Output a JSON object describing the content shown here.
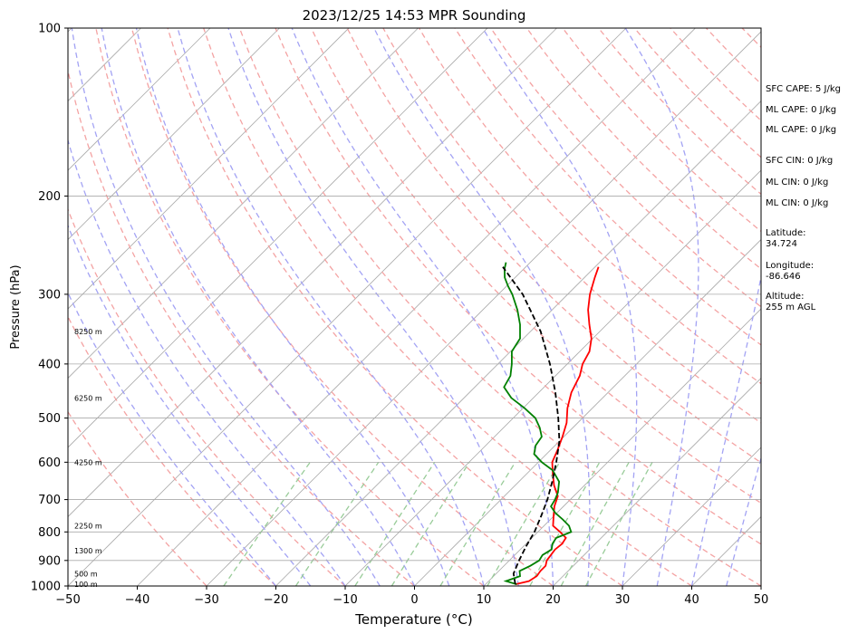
{
  "chart_data": {
    "type": "line",
    "title": "2023/12/25 14:53 MPR Sounding",
    "xlabel": "Temperature (°C)",
    "ylabel": "Pressure (hPa)",
    "xlim": [
      -50,
      50
    ],
    "ylim": [
      1000,
      100
    ],
    "y_scale": "log",
    "grid": true,
    "x_ticks": [
      -50,
      -40,
      -30,
      -20,
      -10,
      0,
      10,
      20,
      30,
      40,
      50
    ],
    "y_ticks": [
      100,
      200,
      300,
      400,
      500,
      600,
      700,
      800,
      900,
      1000
    ],
    "height_labels": [
      "8250 m",
      "6250 m",
      "4250 m",
      "2250 m",
      "1300 m",
      "500 m",
      "100 m"
    ],
    "height_label_pressures": [
      350,
      460,
      600,
      780,
      865,
      950,
      993
    ],
    "series": [
      {
        "color": "#ff0000",
        "pressure": [
          993,
          980,
          960,
          940,
          920,
          900,
          880,
          860,
          840,
          820,
          800,
          780,
          750,
          720,
          690,
          660,
          630,
          600,
          570,
          540,
          510,
          480,
          450,
          420,
          400,
          380,
          360,
          340,
          320,
          300,
          280,
          268
        ],
        "temperature": [
          14.3,
          15.8,
          16.2,
          16.0,
          16.0,
          15.4,
          15.2,
          15.0,
          15.2,
          14.9,
          13.2,
          11.3,
          10.0,
          8.7,
          7.7,
          5.6,
          3.8,
          2.0,
          1.0,
          -0.2,
          -1.6,
          -3.6,
          -5.3,
          -6.5,
          -7.8,
          -8.6,
          -10.2,
          -12.5,
          -14.8,
          -16.8,
          -18.5,
          -19.5
        ]
      },
      {
        "color": "#008000",
        "pressure": [
          993,
          980,
          960,
          940,
          920,
          900,
          880,
          860,
          840,
          820,
          800,
          780,
          760,
          740,
          720,
          700,
          680,
          650,
          620,
          600,
          580,
          560,
          540,
          520,
          500,
          480,
          460,
          440,
          420,
          400,
          380,
          360,
          340,
          320,
          300,
          290,
          280,
          270,
          263
        ],
        "temperature": [
          14.5,
          12.5,
          13.8,
          13.0,
          13.8,
          14.3,
          14.0,
          14.5,
          13.8,
          13.5,
          14.8,
          13.6,
          11.8,
          9.8,
          8.2,
          7.8,
          7.2,
          5.8,
          3.2,
          0.5,
          -1.8,
          -2.8,
          -3.2,
          -4.8,
          -6.8,
          -9.8,
          -13.2,
          -15.8,
          -16.5,
          -18.0,
          -19.8,
          -20.5,
          -22.5,
          -25.0,
          -28.0,
          -29.8,
          -31.5,
          -32.8,
          -33.5
        ]
      },
      {
        "color": "#000000",
        "dashed": true,
        "pressure": [
          993,
          950,
          900,
          850,
          800,
          750,
          700,
          650,
          600,
          550,
          500,
          450,
          400,
          350,
          300,
          268
        ],
        "temperature": [
          14.3,
          12.5,
          11.4,
          10.4,
          9.5,
          8.2,
          6.7,
          4.8,
          2.6,
          0.0,
          -3.5,
          -7.6,
          -12.5,
          -18.5,
          -26.5,
          -33.3
        ]
      }
    ]
  },
  "stats": {
    "sfc_cape": "SFC CAPE: 5 J/kg",
    "ml_cape_1": "ML CAPE: 0 J/kg",
    "ml_cape_2": "ML CAPE: 0 J/kg",
    "sfc_cin": "SFC CIN: 0 J/kg",
    "ml_cin_1": "ML CIN: 0 J/kg",
    "ml_cin_2": "ML CIN: 0 J/kg",
    "latitude_label": "Latitude:",
    "latitude_value": "34.724",
    "longitude_label": "Longitude:",
    "longitude_value": "-86.646",
    "altitude_label": "Altitude:",
    "altitude_value": "255 m AGL"
  },
  "colors": {
    "isotherm": "#aaaaaa",
    "dry_adiabat": "#f4a3a3",
    "moist_adiabat": "#a3a3f4",
    "mixing_ratio": "#99cc99"
  }
}
